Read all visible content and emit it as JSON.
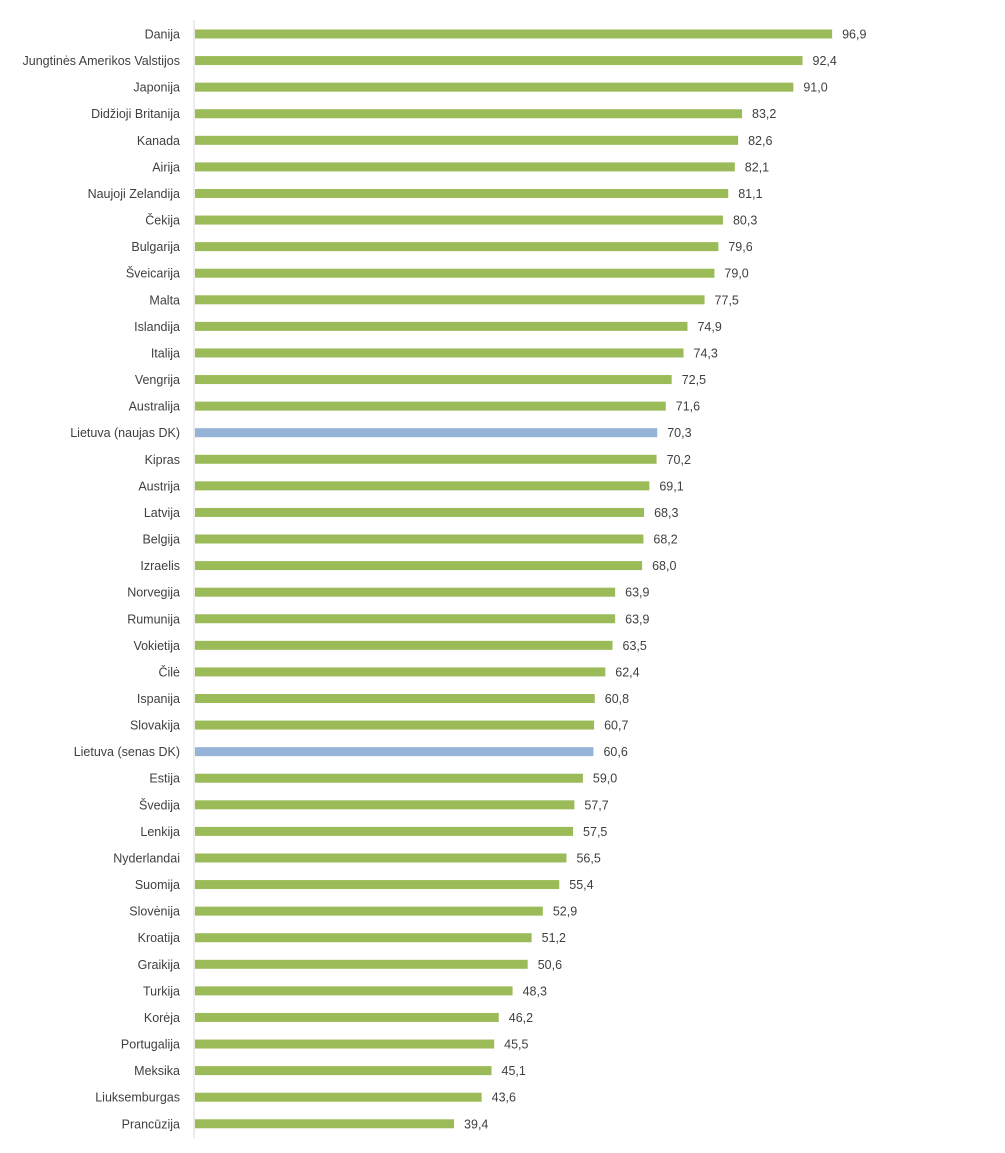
{
  "chart_data": {
    "type": "bar",
    "orientation": "horizontal",
    "categories": [
      "Danija",
      "Jungtinės Amerikos Valstijos",
      "Japonija",
      "Didžioji Britanija",
      "Kanada",
      "Airija",
      "Naujoji Zelandija",
      "Čekija",
      "Bulgarija",
      "Šveicarija",
      "Malta",
      "Islandija",
      "Italija",
      "Vengrija",
      "Australija",
      "Lietuva (naujas DK)",
      "Kipras",
      "Austrija",
      "Latvija",
      "Belgija",
      "Izraelis",
      "Norvegija",
      "Rumunija",
      "Vokietija",
      "Čilė",
      "Ispanija",
      "Slovakija",
      "Lietuva (senas DK)",
      "Estija",
      "Švedija",
      "Lenkija",
      "Nyderlandai",
      "Suomija",
      "Slovėnija",
      "Kroatija",
      "Graikija",
      "Turkija",
      "Korėja",
      "Portugalija",
      "Meksika",
      "Liuksemburgas",
      "Prancūzija"
    ],
    "values": [
      96.9,
      92.4,
      91.0,
      83.2,
      82.6,
      82.1,
      81.1,
      80.3,
      79.6,
      79.0,
      77.5,
      74.9,
      74.3,
      72.5,
      71.6,
      70.3,
      70.2,
      69.1,
      68.3,
      68.2,
      68.0,
      63.9,
      63.9,
      63.5,
      62.4,
      60.8,
      60.7,
      60.6,
      59.0,
      57.7,
      57.5,
      56.5,
      55.4,
      52.9,
      51.2,
      50.6,
      48.3,
      46.2,
      45.5,
      45.1,
      43.6,
      39.4
    ],
    "value_labels": [
      "96,9",
      "92,4",
      "91,0",
      "83,2",
      "82,6",
      "82,1",
      "81,1",
      "80,3",
      "79,6",
      "79,0",
      "77,5",
      "74,9",
      "74,3",
      "72,5",
      "71,6",
      "70,3",
      "70,2",
      "69,1",
      "68,3",
      "68,2",
      "68,0",
      "63,9",
      "63,9",
      "63,5",
      "62,4",
      "60,8",
      "60,7",
      "60,6",
      "59,0",
      "57,7",
      "57,5",
      "56,5",
      "55,4",
      "52,9",
      "51,2",
      "50,6",
      "48,3",
      "46,2",
      "45,5",
      "45,1",
      "43,6",
      "39,4"
    ],
    "highlighted": [
      "Lietuva (naujas DK)",
      "Lietuva (senas DK)"
    ],
    "colors": {
      "default": "#9bbb59",
      "highlight": "#95b3d7",
      "axis": "#d9d9d9",
      "text": "#404040"
    },
    "xlim": [
      0,
      100
    ],
    "grid": false,
    "legend": "none",
    "title": "",
    "xlabel": "",
    "ylabel": ""
  }
}
